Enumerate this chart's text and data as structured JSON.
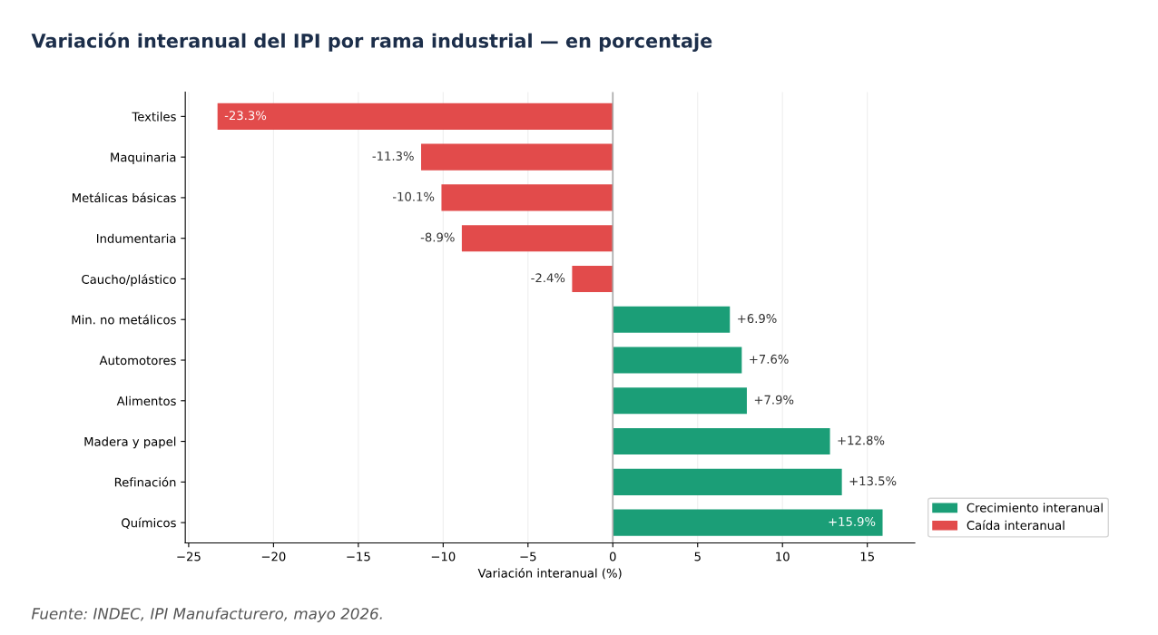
{
  "chart_data": {
    "type": "bar",
    "orientation": "horizontal",
    "title": "Variación interanual del IPI por rama industrial — en porcentaje",
    "xlabel": "Variación interanual (%)",
    "categories": [
      "Textiles",
      "Maquinaria",
      "Metálicas básicas",
      "Indumentaria",
      "Caucho/plástico",
      "Min. no metálicos",
      "Automotores",
      "Alimentos",
      "Madera y papel",
      "Refinación",
      "Químicos"
    ],
    "series": [
      {
        "name": "Crecimiento interanual",
        "color": "#1b9e77",
        "values": [
          null,
          null,
          null,
          null,
          null,
          6.9,
          7.6,
          7.9,
          12.8,
          13.5,
          15.9
        ],
        "value_labels": [
          null,
          null,
          null,
          null,
          null,
          "+6.9%",
          "+7.6%",
          "+7.9%",
          "+12.8%",
          "+13.5%",
          "+15.9%"
        ]
      },
      {
        "name": "Caída interanual",
        "color": "#e24b4b",
        "values": [
          -23.3,
          -11.3,
          -10.1,
          -8.9,
          -2.4,
          null,
          null,
          null,
          null,
          null,
          null
        ],
        "value_labels": [
          "-23.3%",
          "-11.3%",
          "-10.1%",
          "-8.9%",
          "-2.4%",
          null,
          null,
          null,
          null,
          null,
          null
        ]
      }
    ],
    "xlim": [
      -25.2,
      17.8
    ],
    "xticks": [
      {
        "value": -25,
        "label": "−25"
      },
      {
        "value": -20,
        "label": "−20"
      },
      {
        "value": -15,
        "label": "−15"
      },
      {
        "value": -10,
        "label": "−10"
      },
      {
        "value": -5,
        "label": "−5"
      },
      0,
      5,
      10,
      15
    ],
    "ref_lines": [
      {
        "axis": "x",
        "value": 0,
        "label": null,
        "color": "#aaaaaa"
      }
    ],
    "grid": "x",
    "legend": "bottom right",
    "annotations": [
      "Fuente: INDEC, IPI Manufacturero, mayo 2026."
    ]
  }
}
